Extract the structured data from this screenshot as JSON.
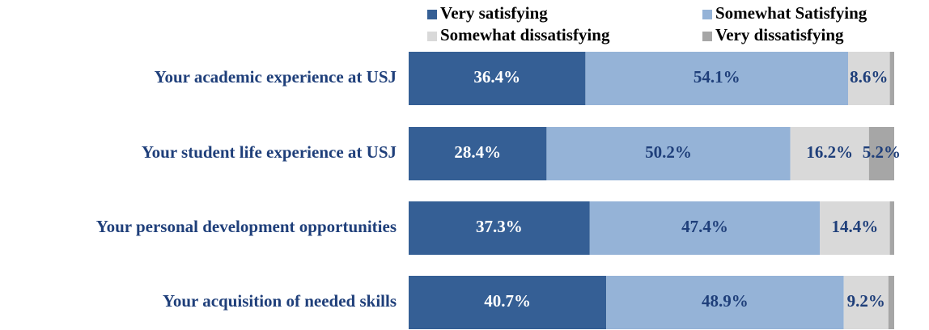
{
  "chart_data": {
    "type": "stacked-bar-horizontal",
    "categories": [
      "Your academic experience at USJ",
      "Your student life experience at USJ",
      "Your personal development opportunities",
      "Your acquisition of needed skills"
    ],
    "series": [
      {
        "name": "Very satisfying",
        "color": "#355f95",
        "label_color": "#ffffff",
        "values": [
          36.4,
          28.4,
          37.3,
          40.7
        ],
        "value_labels": [
          "36.4%",
          "28.4%",
          "37.3%",
          "40.7%"
        ]
      },
      {
        "name": "Somewhat Satisfying",
        "color": "#95b3d7",
        "label_color": "#1f3f7a",
        "values": [
          54.1,
          50.2,
          47.4,
          48.9
        ],
        "value_labels": [
          "54.1%",
          "50.2%",
          "47.4%",
          "48.9%"
        ]
      },
      {
        "name": "Somewhat dissatisfying",
        "color": "#d9d9d9",
        "label_color": "#1f3f7a",
        "values": [
          8.6,
          16.2,
          14.4,
          9.2
        ],
        "value_labels": [
          "8.6%",
          "16.2%",
          "14.4%",
          "9.2%"
        ]
      },
      {
        "name": "Very dissatisfying",
        "color": "#a6a6a6",
        "label_color": "#1f3f7a",
        "values": [
          0.9,
          5.2,
          0.9,
          1.2
        ],
        "value_labels": [
          null,
          "5.2%",
          null,
          null
        ]
      }
    ],
    "category_color": "#1f3f7a"
  }
}
